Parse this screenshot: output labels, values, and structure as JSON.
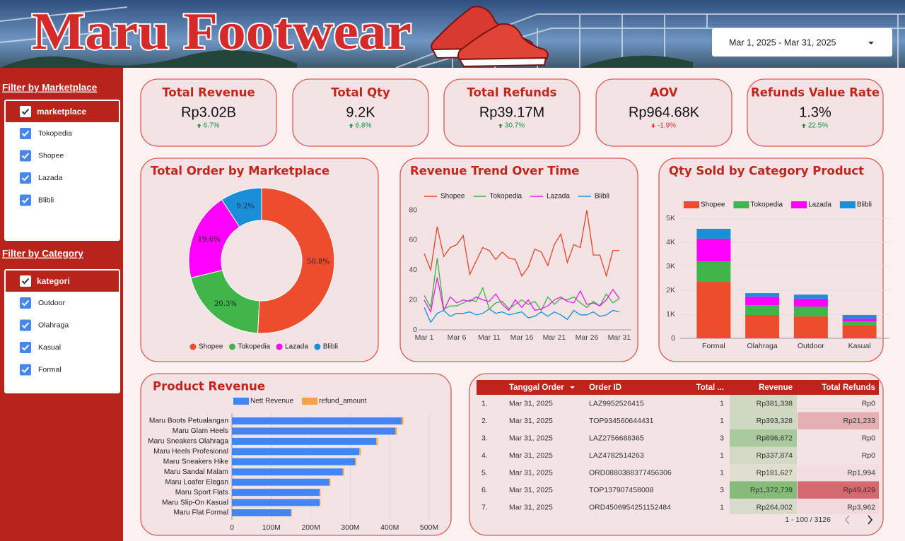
{
  "header": {
    "title": "Maru Footwear",
    "date_range": "Mar 1, 2025 - Mar 31, 2025"
  },
  "filters": [
    {
      "title": "Filter by Marketplace",
      "header": "marketplace",
      "options": [
        "Tokopedia",
        "Shopee",
        "Lazada",
        "Blibli"
      ]
    },
    {
      "title": "Filter by Category",
      "header": "kategori",
      "options": [
        "Outdoor",
        "Olahraga",
        "Kasual",
        "Formal"
      ]
    }
  ],
  "kpis": [
    {
      "title": "Total Revenue",
      "value": "Rp3.02B",
      "change": "6.7%",
      "trend": "up"
    },
    {
      "title": "Total Qty",
      "value": "9.2K",
      "change": "6.8%",
      "trend": "up"
    },
    {
      "title": "Total Refunds",
      "value": "Rp39.17M",
      "change": "30.7%",
      "trend": "up"
    },
    {
      "title": "AOV",
      "value": "Rp964.68K",
      "change": "-1.9%",
      "trend": "down"
    },
    {
      "title": "Refunds Value Rate",
      "value": "1.3%",
      "change": "22.5%",
      "trend": "up"
    }
  ],
  "chart_data": [
    {
      "type": "donut",
      "title": "Total Order by Marketplace",
      "categories": [
        "Shopee",
        "Tokopedia",
        "Lazada",
        "Blibli"
      ],
      "values": [
        50.8,
        20.3,
        19.6,
        9.2
      ],
      "value_labels": [
        "50.8%",
        "20.3%",
        "19.6%",
        "9.2%"
      ],
      "colors": [
        "#ee4d2d",
        "#3fb54a",
        "#ff00ff",
        "#1a8fd8"
      ],
      "legend": "bottom"
    },
    {
      "type": "line",
      "title": "Revenue Trend Over Time",
      "categories": [
        "Mar 1",
        null,
        null,
        null,
        null,
        "Mar 6",
        null,
        null,
        null,
        null,
        "Mar 11",
        null,
        null,
        null,
        null,
        "Mar 16",
        null,
        null,
        null,
        null,
        "Mar 21",
        null,
        null,
        null,
        null,
        "Mar 26",
        null,
        null,
        null,
        null,
        "Mar 31"
      ],
      "series": [
        {
          "name": "Shopee",
          "color": "#e8442a",
          "values": [
            51,
            40,
            69,
            49,
            55,
            57,
            63,
            37,
            46,
            55,
            53,
            47,
            52,
            48,
            47,
            36,
            42,
            54,
            52,
            43,
            57,
            64,
            45,
            57,
            55,
            80,
            50,
            50,
            36,
            53,
            53
          ]
        },
        {
          "name": "Tokopedia",
          "color": "#3cb043",
          "values": [
            23,
            15,
            48,
            14,
            16,
            16,
            18,
            20,
            19,
            28,
            14,
            18,
            19,
            14,
            17,
            20,
            17,
            19,
            13,
            22,
            17,
            21,
            20,
            22,
            18,
            15,
            19,
            16,
            24,
            18,
            21
          ]
        },
        {
          "name": "Lazada",
          "color": "#e61ee6",
          "values": [
            20,
            12,
            35,
            13,
            22,
            18,
            20,
            19,
            22,
            20,
            19,
            24,
            17,
            13,
            20,
            15,
            20,
            13,
            14,
            16,
            20,
            22,
            19,
            18,
            26,
            17,
            18,
            16,
            20,
            27,
            21
          ]
        },
        {
          "name": "Blibli",
          "color": "#1a8fd8",
          "values": [
            15,
            5,
            11,
            13,
            9,
            11,
            11,
            12,
            10,
            11,
            14,
            11,
            12,
            10,
            11,
            12,
            8,
            9,
            12,
            9,
            12,
            10,
            7,
            13,
            10,
            10,
            12,
            9,
            10,
            13,
            12
          ]
        }
      ],
      "ylim": [
        0,
        85
      ],
      "yticks": [
        0,
        20,
        40,
        60,
        80
      ],
      "grid": false,
      "legend": "top"
    },
    {
      "type": "bar",
      "stacked": true,
      "title": "Qty Sold by Category Product",
      "categories": [
        "Formal",
        "Olahraga",
        "Outdoor",
        "Kasual"
      ],
      "series": [
        {
          "name": "Shopee",
          "color": "#ee4d2d",
          "values": [
            2350,
            970,
            910,
            530
          ]
        },
        {
          "name": "Tokopedia",
          "color": "#3fb54a",
          "values": [
            850,
            410,
            410,
            170
          ]
        },
        {
          "name": "Lazada",
          "color": "#ff00ff",
          "values": [
            950,
            360,
            330,
            120
          ]
        },
        {
          "name": "Blibli",
          "color": "#1a8fd8",
          "values": [
            410,
            140,
            170,
            150
          ]
        }
      ],
      "ylim": [
        0,
        5000
      ],
      "yticks": [
        0,
        {
          "value": 1000,
          "label": "1K"
        },
        {
          "value": 2000,
          "label": "2K"
        },
        {
          "value": 3000,
          "label": "3K"
        },
        {
          "value": 4000,
          "label": "4K"
        },
        {
          "value": 5000,
          "label": "5K"
        }
      ],
      "grid": true,
      "legend": "top-left"
    },
    {
      "type": "hbar",
      "stacked": true,
      "title": "Product Revenue",
      "categories": [
        "Maru Boots Petualangan",
        "Maru Glam Heels",
        "Maru Sneakers Olahraga",
        "Maru Heels Profesional",
        "Maru Sneakers Hike",
        "Maru Sandal Malam",
        "Maru Loafer Elegan",
        "Maru Sport Flats",
        "Maru Slip-On Kasual",
        "Maru Flat Formal"
      ],
      "series": [
        {
          "name": "Nett Revenue",
          "color": "#4285f4",
          "values": [
            430000000,
            414000000,
            366000000,
            323000000,
            312000000,
            281000000,
            247000000,
            222000000,
            222000000,
            150000000
          ]
        },
        {
          "name": "refund_amount",
          "color": "#f4a04c",
          "values": [
            4500000,
            4200000,
            3800000,
            3500000,
            3300000,
            3000000,
            2700000,
            2400000,
            2300000,
            1600000
          ]
        }
      ],
      "xlim": [
        0,
        500000000
      ],
      "xticks": [
        0,
        {
          "value": 100000000,
          "label": "100M"
        },
        {
          "value": 200000000,
          "label": "200M"
        },
        {
          "value": 300000000,
          "label": "300M"
        },
        {
          "value": 400000000,
          "label": "400M"
        },
        {
          "value": 500000000,
          "label": "500M"
        }
      ],
      "grid": true,
      "legend": "top"
    }
  ],
  "table": {
    "columns": [
      "Tanggal Order",
      "Order ID",
      "Total ...",
      "Revenue",
      "Total Refunds"
    ],
    "rows": [
      [
        "1.",
        "Mar 31, 2025",
        "LAZ9952526415",
        "1",
        "Rp381,338",
        "Rp0"
      ],
      [
        "2.",
        "Mar 31, 2025",
        "TOP934560644431",
        "1",
        "Rp393,328",
        "Rp21,233"
      ],
      [
        "3.",
        "Mar 31, 2025",
        "LAZ2756688365",
        "3",
        "Rp896,672",
        "Rp0"
      ],
      [
        "4.",
        "Mar 31, 2025",
        "LAZ4782514263",
        "1",
        "Rp337,874",
        "Rp0"
      ],
      [
        "5.",
        "Mar 31, 2025",
        "ORD0880388377456306",
        "1",
        "Rp181,627",
        "Rp1,994"
      ],
      [
        "6.",
        "Mar 31, 2025",
        "TOP137907458008",
        "3",
        "Rp1,372,739",
        "Rp49,429"
      ],
      [
        "7.",
        "Mar 31, 2025",
        "ORD4506954251152484",
        "1",
        "Rp264,002",
        "Rp3,962"
      ]
    ],
    "pagination": "1 - 100 / 3126"
  }
}
